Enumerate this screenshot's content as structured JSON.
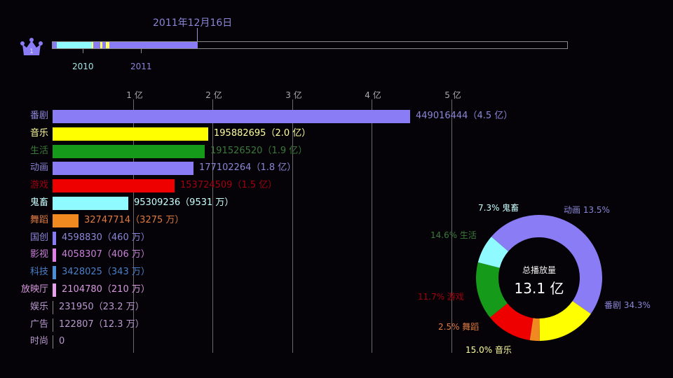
{
  "header": {
    "date": "2011年12月16日",
    "rank_badge": "1",
    "timeline": {
      "years": [
        {
          "label": "2010",
          "x": 118,
          "color": "#9fe6e6"
        },
        {
          "label": "2011",
          "x": 201,
          "color": "#8a86d8"
        }
      ],
      "segments": [
        {
          "start": 0,
          "width": 6,
          "color": "#8a7cf5"
        },
        {
          "start": 6,
          "width": 50,
          "color": "#8ffaff"
        },
        {
          "start": 56,
          "width": 2,
          "color": "#ffff66"
        },
        {
          "start": 58,
          "width": 10,
          "color": "#8a7cf5"
        },
        {
          "start": 68,
          "width": 3,
          "color": "#ffff66"
        },
        {
          "start": 71,
          "width": 5,
          "color": "#8a7cf5"
        },
        {
          "start": 76,
          "width": 5,
          "color": "#ffff66"
        },
        {
          "start": 81,
          "width": 126,
          "color": "#8a7cf5"
        }
      ]
    }
  },
  "chart_data": [
    {
      "type": "bar",
      "orientation": "horizontal",
      "title": "2011年12月16日",
      "xlabel": "",
      "ylabel": "",
      "x_ticks": [
        "1 亿",
        "2 亿",
        "3 亿",
        "4 亿",
        "5 亿"
      ],
      "xlim": [
        0,
        560000000
      ],
      "grid": true,
      "categories": [
        "番剧",
        "音乐",
        "生活",
        "动画",
        "游戏",
        "鬼畜",
        "舞蹈",
        "国创",
        "影视",
        "科技",
        "放映厅",
        "娱乐",
        "广告",
        "时尚"
      ],
      "values": [
        449016444,
        195882695,
        191526520,
        177102264,
        153724509,
        95309236,
        32747714,
        4598830,
        4058307,
        3428025,
        2104780,
        231950,
        122807,
        0
      ],
      "value_labels": [
        "449016444（4.5 亿）",
        "195882695（2.0 亿）",
        "191526520（1.9 亿）",
        "177102264（1.8 亿）",
        "153724509（1.5 亿）",
        "95309236（9531 万）",
        "32747714（3275 万）",
        "4598830（460 万）",
        "4058307（406 万）",
        "3428025（343 万）",
        "2104780（210 万）",
        "231950（23.2 万）",
        "122807（12.3 万）",
        "0"
      ],
      "colors": [
        "#8a7cf5",
        "#ffff00",
        "#169a1a",
        "#8a7cf5",
        "#ee0000",
        "#8ffaff",
        "#f08a20",
        "#8a7cf5",
        "#e080e8",
        "#4a90d8",
        "#e8a0ec",
        "#888888",
        "#888888",
        "#888888"
      ],
      "label_colors": [
        "#8a86d8",
        "#ffffa0",
        "#3a7a3a",
        "#8a86d8",
        "#a00010",
        "#c8ffff",
        "#e07a40",
        "#8a86d8",
        "#c880d8",
        "#4a80c8",
        "#d898e0",
        "#b89ad0",
        "#b89ad0",
        "#b89ad0"
      ]
    },
    {
      "type": "pie",
      "donut": true,
      "title": "总播放量",
      "center_value": "13.1 亿",
      "slices": [
        {
          "label": "番剧",
          "percent": 34.3,
          "text": "番剧 34.3%",
          "color": "#8a7cf5",
          "text_color": "#8a86d8"
        },
        {
          "label": "音乐",
          "percent": 15.0,
          "text": "15.0%  音乐",
          "color": "#ffff00",
          "text_color": "#ffffa0"
        },
        {
          "label": "舞蹈",
          "percent": 2.5,
          "text": "2.5%  舞蹈",
          "color": "#f08a20",
          "text_color": "#e07a40"
        },
        {
          "label": "游戏",
          "percent": 11.7,
          "text": "11.7%  游戏",
          "color": "#ee0000",
          "text_color": "#a00010"
        },
        {
          "label": "生活",
          "percent": 14.6,
          "text": "14.6%  生活",
          "color": "#169a1a",
          "text_color": "#3a7a3a"
        },
        {
          "label": "鬼畜",
          "percent": 7.3,
          "text": "7.3%  鬼畜",
          "color": "#8ffaff",
          "text_color": "#c8ffff"
        },
        {
          "label": "动画",
          "percent": 13.5,
          "text": "动画 13.5%",
          "color": "#8a7cf5",
          "text_color": "#8a86d8"
        }
      ]
    }
  ],
  "donut": {
    "center_title": "总播放量",
    "center_value": "13.1 亿"
  }
}
